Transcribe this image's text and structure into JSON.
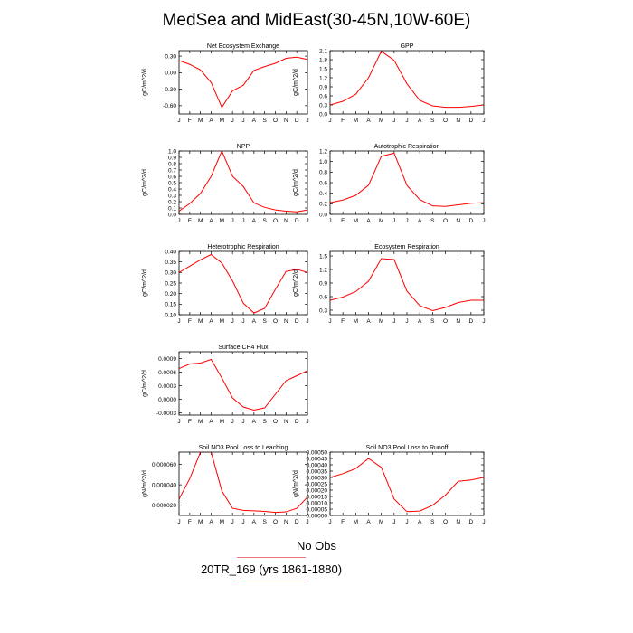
{
  "title": "MedSea and MidEast(30-45N,10W-60E)",
  "months": [
    "J",
    "F",
    "M",
    "A",
    "M",
    "J",
    "J",
    "A",
    "S",
    "O",
    "N",
    "D",
    "J"
  ],
  "series_color": "#ff0000",
  "legend": {
    "obs_label": "No Obs",
    "model_label": "20TR_169 (yrs 1861-1880)",
    "model_color": "#ff0000"
  },
  "chart_data": [
    {
      "type": "line",
      "title": "Net Ecosystem Exchange",
      "ylabel": "gC/m^2/d",
      "ylim": [
        -0.75,
        0.4
      ],
      "yticks": [
        -0.6,
        -0.3,
        0.0,
        0.3
      ],
      "ytick_labels": [
        "-0.60",
        "-0.30",
        "0.00",
        "0.30"
      ],
      "values": [
        0.22,
        0.15,
        0.05,
        -0.18,
        -0.63,
        -0.33,
        -0.23,
        0.04,
        0.11,
        0.17,
        0.26,
        0.28,
        0.24
      ]
    },
    {
      "type": "line",
      "title": "GPP",
      "ylabel": "gC/m^2/d",
      "ylim": [
        0.0,
        2.1
      ],
      "yticks": [
        0.0,
        0.3,
        0.6,
        0.9,
        1.2,
        1.5,
        1.8,
        2.1
      ],
      "ytick_labels": [
        "0.0",
        "0.3",
        "0.6",
        "0.9",
        "1.2",
        "1.5",
        "1.8",
        "2.1"
      ],
      "values": [
        0.3,
        0.42,
        0.65,
        1.2,
        2.08,
        1.78,
        1.0,
        0.45,
        0.27,
        0.22,
        0.22,
        0.25,
        0.3
      ]
    },
    {
      "type": "line",
      "title": "NPP",
      "ylabel": "gC/m^2/d",
      "ylim": [
        0.0,
        1.0
      ],
      "yticks": [
        0.0,
        0.1,
        0.2,
        0.3,
        0.4,
        0.5,
        0.6,
        0.7,
        0.8,
        0.9,
        1.0
      ],
      "ytick_labels": [
        "0.0",
        "0.1",
        "0.2",
        "0.3",
        "0.4",
        "0.5",
        "0.6",
        "0.7",
        "0.8",
        "0.9",
        "1.0"
      ],
      "values": [
        0.05,
        0.17,
        0.33,
        0.6,
        1.0,
        0.6,
        0.44,
        0.18,
        0.11,
        0.07,
        0.05,
        0.04,
        0.07
      ]
    },
    {
      "type": "line",
      "title": "Autotrophic Respiration",
      "ylabel": "gC/m^2/d",
      "ylim": [
        0.0,
        1.2
      ],
      "yticks": [
        0.0,
        0.2,
        0.4,
        0.6,
        0.8,
        1.0,
        1.2
      ],
      "ytick_labels": [
        "0.0",
        "0.2",
        "0.4",
        "0.6",
        "0.8",
        "1.0",
        "1.2"
      ],
      "values": [
        0.22,
        0.27,
        0.36,
        0.55,
        1.1,
        1.16,
        0.55,
        0.28,
        0.16,
        0.15,
        0.18,
        0.21,
        0.22
      ]
    },
    {
      "type": "line",
      "title": "Heterotrophic Respiration",
      "ylabel": "gC/m^2/d",
      "ylim": [
        0.1,
        0.4
      ],
      "yticks": [
        0.1,
        0.15,
        0.2,
        0.25,
        0.3,
        0.35,
        0.4
      ],
      "ytick_labels": [
        "0.10",
        "0.15",
        "0.20",
        "0.25",
        "0.30",
        "0.35",
        "0.40"
      ],
      "values": [
        0.3,
        0.33,
        0.36,
        0.385,
        0.345,
        0.26,
        0.155,
        0.108,
        0.13,
        0.22,
        0.305,
        0.315,
        0.3
      ]
    },
    {
      "type": "line",
      "title": "Ecosystem Respiration",
      "ylabel": "gC/m^2/d",
      "ylim": [
        0.2,
        1.6
      ],
      "yticks": [
        0.3,
        0.6,
        0.9,
        1.2,
        1.5
      ],
      "ytick_labels": [
        "0.3",
        "0.6",
        "0.9",
        "1.2",
        "1.5"
      ],
      "values": [
        0.52,
        0.59,
        0.71,
        0.94,
        1.44,
        1.42,
        0.72,
        0.4,
        0.29,
        0.36,
        0.47,
        0.52,
        0.52
      ]
    },
    {
      "type": "line",
      "title": "Surface CH4 Flux",
      "ylabel": "gC/m^2/d",
      "ylim": [
        -0.00035,
        0.00105
      ],
      "yticks": [
        -0.0003,
        0.0,
        0.0003,
        0.0006,
        0.0009
      ],
      "ytick_labels": [
        "-0.0003",
        "0.0000",
        "0.0003",
        "0.0006",
        "0.0009"
      ],
      "values": [
        0.00068,
        0.00078,
        0.0008,
        0.00088,
        0.00047,
        3e-05,
        -0.00017,
        -0.00024,
        -0.00019,
        0.00011,
        0.00041,
        0.00052,
        0.00063
      ]
    },
    {
      "type": "line",
      "title": "Soil NO3 Pool Loss to Leaching",
      "ylabel": "gN/m^2/d",
      "ylim": [
        1e-05,
        7.2e-05
      ],
      "yticks": [
        2e-05,
        4e-05,
        6e-05
      ],
      "ytick_labels": [
        "0.000020",
        "0.000040",
        "0.000060"
      ],
      "values": [
        2.6e-05,
        4.6e-05,
        7.2e-05,
        7.2e-05,
        3.4e-05,
        1.7e-05,
        1.5e-05,
        1.45e-05,
        1.4e-05,
        1.3e-05,
        1.35e-05,
        1.7e-05,
        2.8e-05
      ]
    },
    {
      "type": "line",
      "title": "Soil NO3 Pool Loss to Runoff",
      "ylabel": "gN/m^2/d",
      "ylim": [
        0.0,
        0.0005
      ],
      "yticks": [
        0.0,
        5e-05,
        0.0001,
        0.00015,
        0.0002,
        0.00025,
        0.0003,
        0.00035,
        0.0004,
        0.00045,
        0.0005
      ],
      "ytick_labels": [
        "0.00000",
        "0.00005",
        "0.00010",
        "0.00015",
        "0.00020",
        "0.00025",
        "0.00030",
        "0.00035",
        "0.00040",
        "0.00045",
        "0.00050"
      ],
      "values": [
        0.0003,
        0.00033,
        0.00037,
        0.00045,
        0.00038,
        0.00013,
        3e-05,
        3.5e-05,
        8e-05,
        0.00016,
        0.00027,
        0.00028,
        0.0003
      ]
    }
  ]
}
